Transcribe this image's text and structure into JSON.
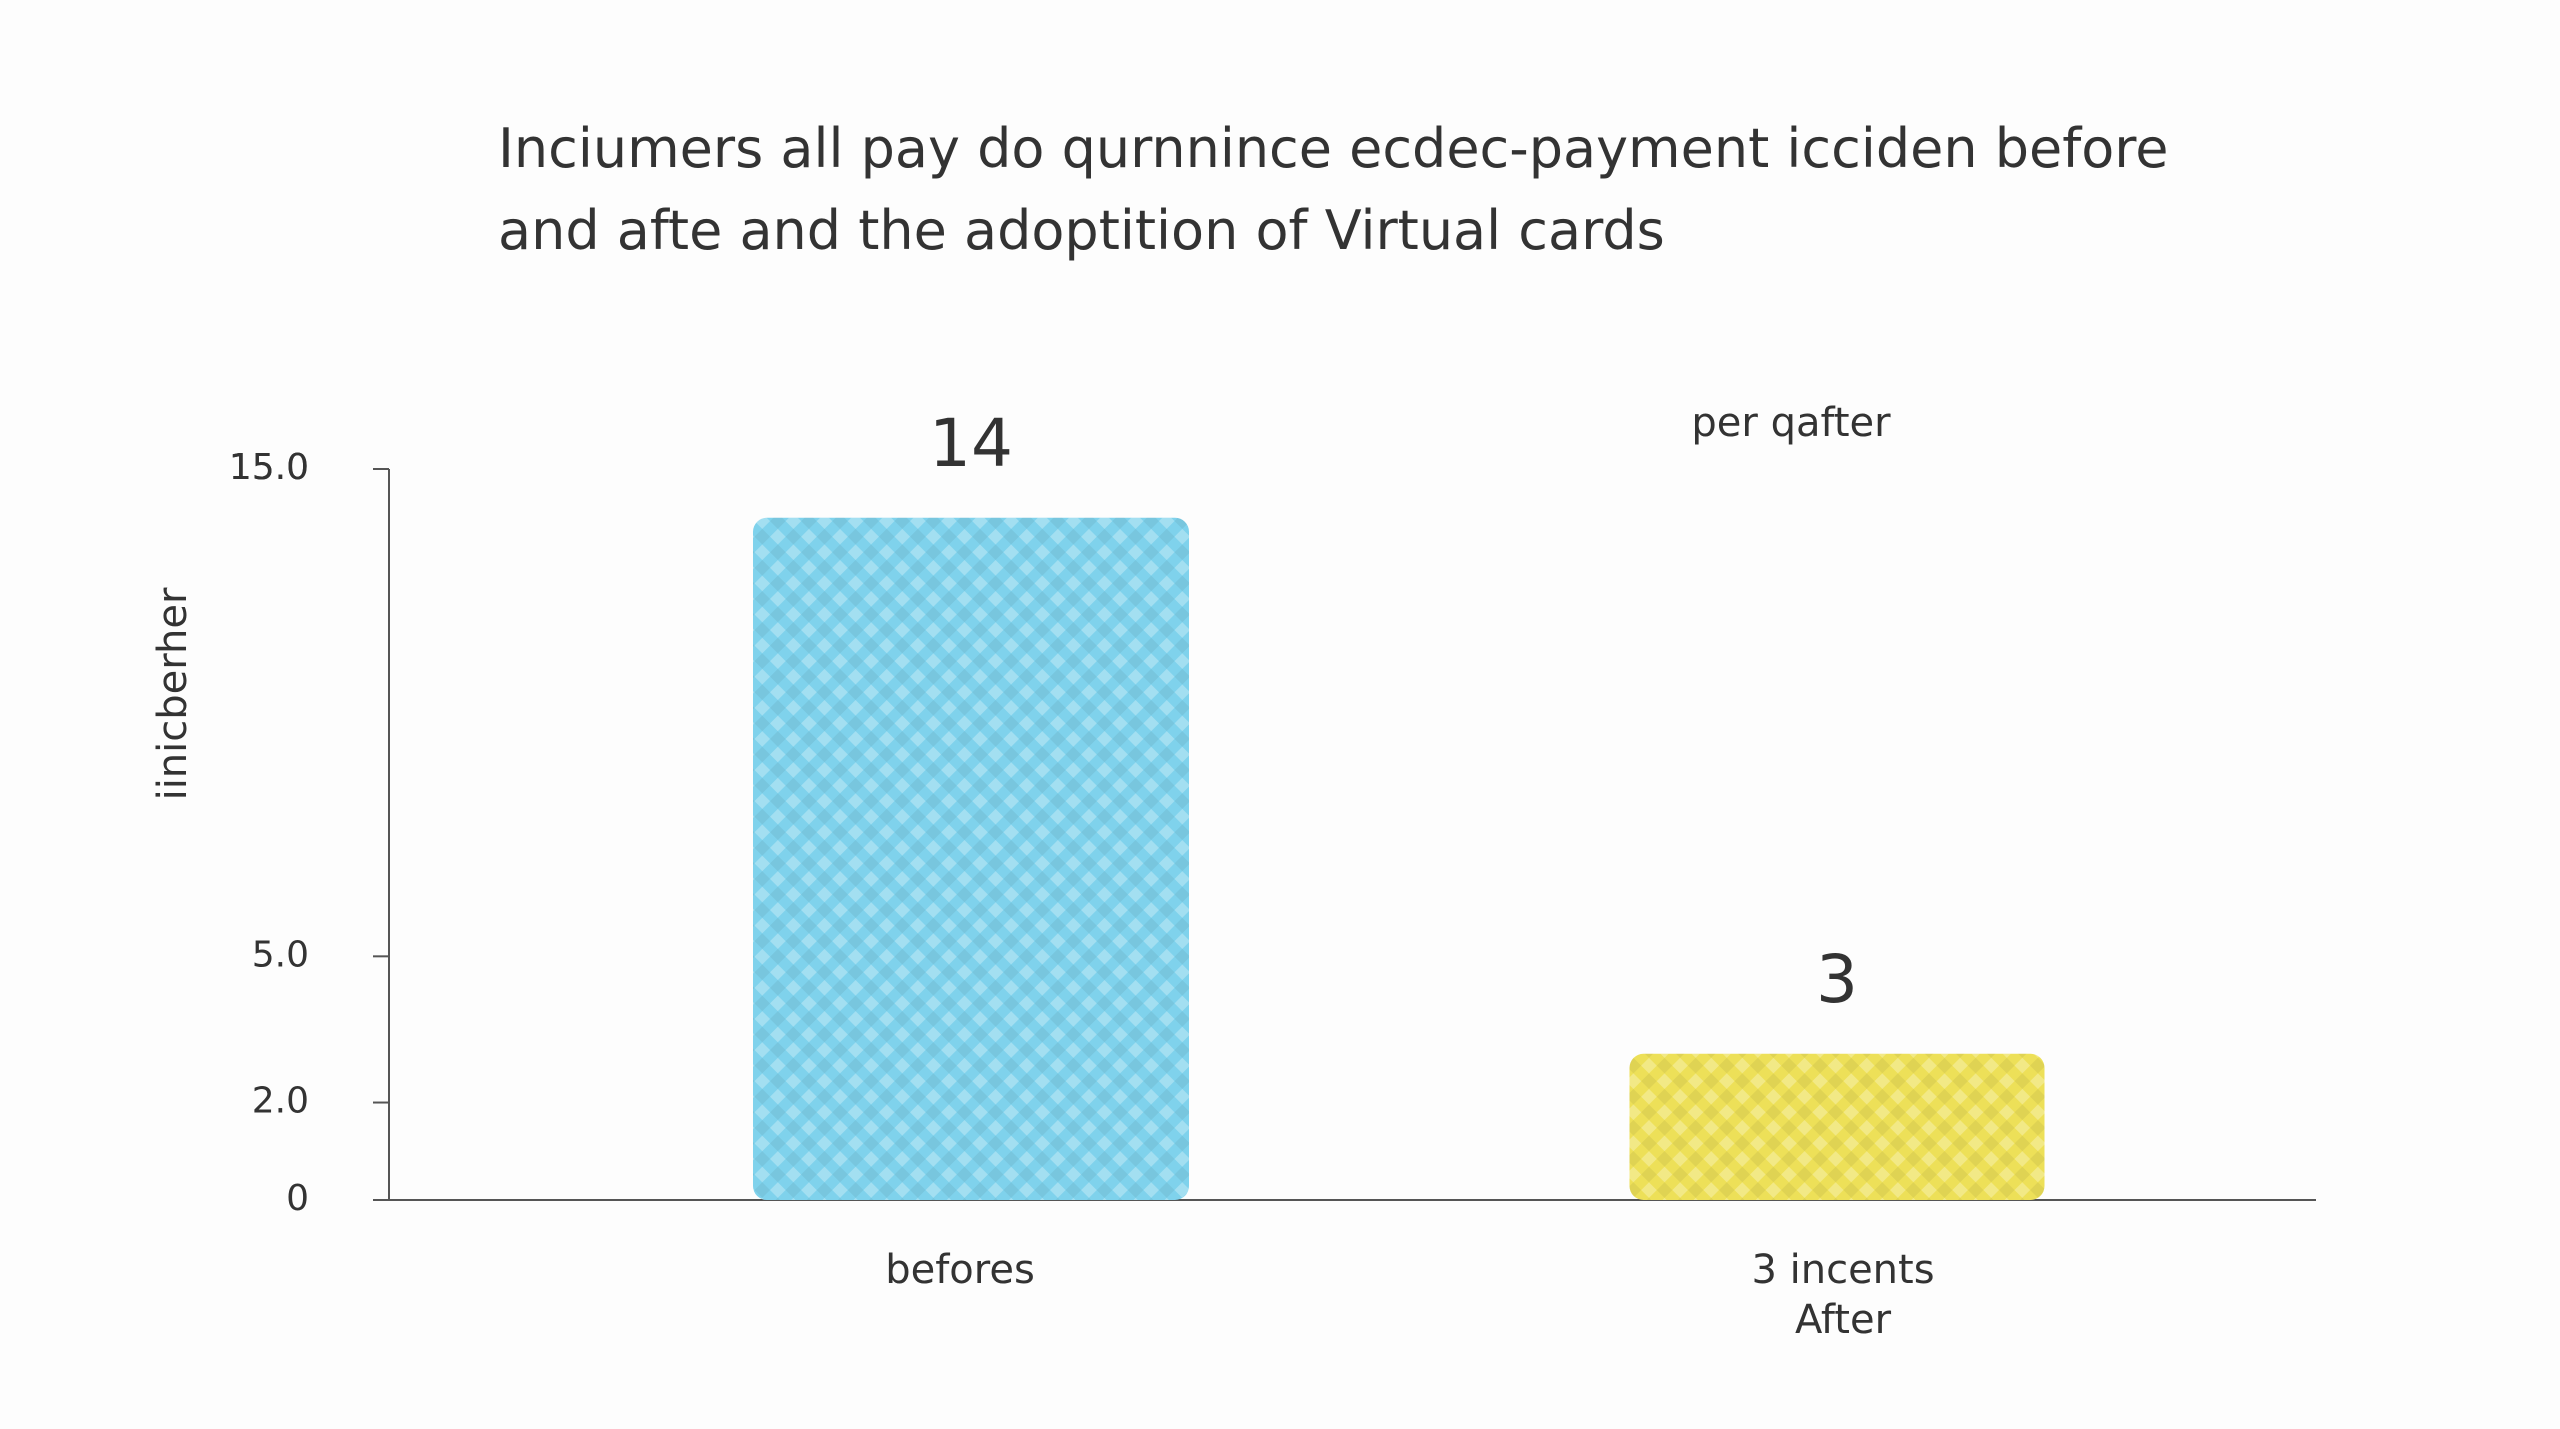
{
  "chart_data": {
    "type": "bar",
    "title": "Inciumers all pay do qurnnince ecdec-payment icciden before\nand afte and the adoptition of Virtual cards",
    "ylabel": "iinicberher",
    "annotation": "per qafter",
    "categories": [
      "befores",
      "3 incents\nAfter"
    ],
    "values": [
      14,
      3
    ],
    "colors": [
      "#7fd2ec",
      "#ede058"
    ],
    "ylim": [
      0,
      15
    ],
    "yticks": [
      {
        "value": 15,
        "label": "15.0"
      },
      {
        "value": 15,
        "label": "15.0"
      },
      {
        "value": 5,
        "label": "5.0"
      },
      {
        "value": 2,
        "label": "2.0"
      },
      0
    ],
    "grid": false
  }
}
